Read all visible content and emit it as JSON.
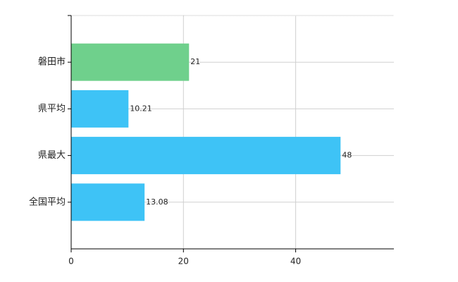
{
  "chart_data": {
    "type": "bar",
    "orientation": "horizontal",
    "categories": [
      "磐田市",
      "県平均",
      "県最大",
      "全国平均"
    ],
    "values": [
      21,
      10.21,
      48,
      13.08
    ],
    "colors": [
      "#6fd08c",
      "#3ec3f6",
      "#3ec3f6",
      "#3ec3f6"
    ],
    "xlim": [
      0,
      57.5
    ],
    "xticks": [
      0,
      20,
      40
    ],
    "grid": true
  }
}
